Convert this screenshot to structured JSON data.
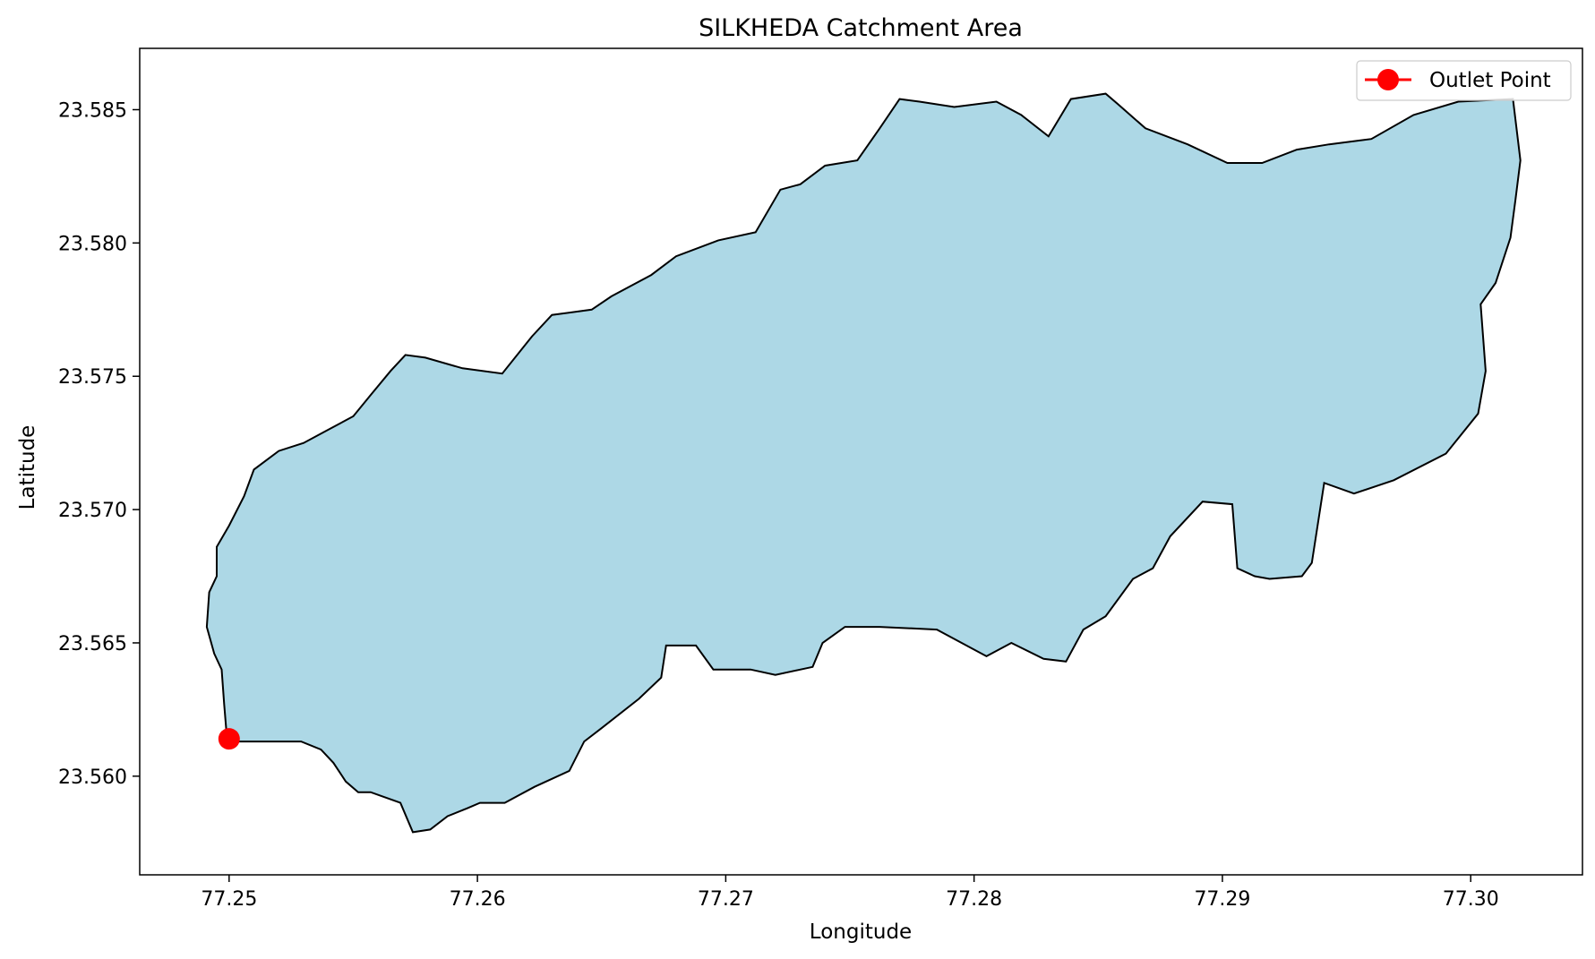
{
  "chart_data": {
    "type": "map",
    "title": "SILKHEDA Catchment Area",
    "xlabel": "Longitude",
    "ylabel": "Latitude",
    "xlim": [
      77.2464,
      77.3045
    ],
    "ylim": [
      23.5563,
      23.5873
    ],
    "xticks": [
      "77.25",
      "77.26",
      "77.27",
      "77.28",
      "77.29",
      "77.30"
    ],
    "yticks": [
      "23.560",
      "23.565",
      "23.570",
      "23.575",
      "23.580",
      "23.585"
    ],
    "grid": false,
    "legend": {
      "position": "top-right",
      "entries": [
        "Outlet Point"
      ]
    },
    "colors": {
      "catchment_fill": "#add8e6",
      "catchment_edge": "#000000",
      "outlet": "#ff0000"
    },
    "outlet_point": {
      "name": "Outlet Point",
      "lon": 77.25,
      "lat": 23.5614
    },
    "catchment_boundary": [
      [
        77.25,
        23.5613
      ],
      [
        77.2529,
        23.5613
      ],
      [
        77.2537,
        23.561
      ],
      [
        77.2542,
        23.5605
      ],
      [
        77.2547,
        23.5598
      ],
      [
        77.2552,
        23.5594
      ],
      [
        77.2557,
        23.5594
      ],
      [
        77.2569,
        23.559
      ],
      [
        77.2574,
        23.5579
      ],
      [
        77.2581,
        23.558
      ],
      [
        77.2588,
        23.5585
      ],
      [
        77.2596,
        23.5588
      ],
      [
        77.2601,
        23.559
      ],
      [
        77.2611,
        23.559
      ],
      [
        77.2623,
        23.5596
      ],
      [
        77.2637,
        23.5602
      ],
      [
        77.2643,
        23.5613
      ],
      [
        77.265,
        23.5618
      ],
      [
        77.2665,
        23.5629
      ],
      [
        77.2674,
        23.5637
      ],
      [
        77.2676,
        23.5649
      ],
      [
        77.2688,
        23.5649
      ],
      [
        77.2695,
        23.564
      ],
      [
        77.271,
        23.564
      ],
      [
        77.272,
        23.5638
      ],
      [
        77.2735,
        23.5641
      ],
      [
        77.2739,
        23.565
      ],
      [
        77.2748,
        23.5656
      ],
      [
        77.2762,
        23.5656
      ],
      [
        77.2785,
        23.5655
      ],
      [
        77.2795,
        23.565
      ],
      [
        77.2805,
        23.5645
      ],
      [
        77.2815,
        23.565
      ],
      [
        77.2828,
        23.5644
      ],
      [
        77.2837,
        23.5643
      ],
      [
        77.2844,
        23.5655
      ],
      [
        77.2853,
        23.566
      ],
      [
        77.2864,
        23.5674
      ],
      [
        77.2872,
        23.5678
      ],
      [
        77.2879,
        23.569
      ],
      [
        77.2892,
        23.5703
      ],
      [
        77.2904,
        23.5702
      ],
      [
        77.2906,
        23.5678
      ],
      [
        77.2913,
        23.5675
      ],
      [
        77.2919,
        23.5674
      ],
      [
        77.2932,
        23.5675
      ],
      [
        77.2936,
        23.568
      ],
      [
        77.2941,
        23.571
      ],
      [
        77.2953,
        23.5706
      ],
      [
        77.2969,
        23.5711
      ],
      [
        77.299,
        23.5721
      ],
      [
        77.3003,
        23.5736
      ],
      [
        77.3006,
        23.5752
      ],
      [
        77.3004,
        23.5777
      ],
      [
        77.301,
        23.5785
      ],
      [
        77.3016,
        23.5802
      ],
      [
        77.3018,
        23.5816
      ],
      [
        77.302,
        23.5831
      ],
      [
        77.3017,
        23.5854
      ],
      [
        77.2995,
        23.5853
      ],
      [
        77.2977,
        23.5848
      ],
      [
        77.296,
        23.5839
      ],
      [
        77.2943,
        23.5837
      ],
      [
        77.293,
        23.5835
      ],
      [
        77.2916,
        23.583
      ],
      [
        77.2902,
        23.583
      ],
      [
        77.2886,
        23.5837
      ],
      [
        77.2869,
        23.5843
      ],
      [
        77.2858,
        23.5852
      ],
      [
        77.2853,
        23.5856
      ],
      [
        77.2839,
        23.5854
      ],
      [
        77.283,
        23.584
      ],
      [
        77.2819,
        23.5848
      ],
      [
        77.2809,
        23.5853
      ],
      [
        77.2792,
        23.5851
      ],
      [
        77.2778,
        23.5853
      ],
      [
        77.277,
        23.5854
      ],
      [
        77.2762,
        23.5843
      ],
      [
        77.2753,
        23.5831
      ],
      [
        77.274,
        23.5829
      ],
      [
        77.273,
        23.5822
      ],
      [
        77.2722,
        23.582
      ],
      [
        77.2712,
        23.5804
      ],
      [
        77.2697,
        23.5801
      ],
      [
        77.268,
        23.5795
      ],
      [
        77.267,
        23.5788
      ],
      [
        77.2654,
        23.578
      ],
      [
        77.2646,
        23.5775
      ],
      [
        77.263,
        23.5773
      ],
      [
        77.2622,
        23.5765
      ],
      [
        77.261,
        23.5751
      ],
      [
        77.2594,
        23.5753
      ],
      [
        77.2579,
        23.5757
      ],
      [
        77.2571,
        23.5758
      ],
      [
        77.2565,
        23.5752
      ],
      [
        77.2557,
        23.5743
      ],
      [
        77.255,
        23.5735
      ],
      [
        77.2538,
        23.5729
      ],
      [
        77.253,
        23.5725
      ],
      [
        77.252,
        23.5722
      ],
      [
        77.251,
        23.5715
      ],
      [
        77.2506,
        23.5705
      ],
      [
        77.25,
        23.5694
      ],
      [
        77.2495,
        23.5686
      ],
      [
        77.2495,
        23.5675
      ],
      [
        77.2492,
        23.5669
      ],
      [
        77.2491,
        23.5656
      ],
      [
        77.2494,
        23.5646
      ],
      [
        77.2497,
        23.564
      ],
      [
        77.2498,
        23.5627
      ],
      [
        77.2499,
        23.5616
      ],
      [
        77.25,
        23.5613
      ]
    ]
  }
}
